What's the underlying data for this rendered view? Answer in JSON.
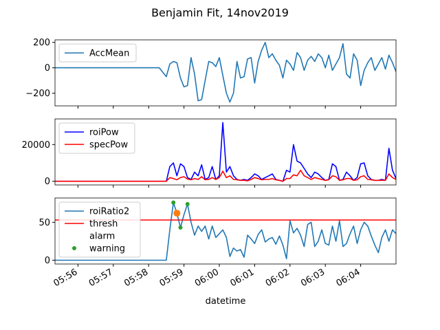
{
  "chart_data": {
    "title": "Benjamin Fit, 14nov2019",
    "xlabel": "datetime",
    "x_ticks": [
      "05:56",
      "05:57",
      "05:58",
      "05:59",
      "06:00",
      "06:01",
      "06:02",
      "06:03",
      "06:04"
    ],
    "x_tick_minutes": [
      356,
      357,
      358,
      359,
      360,
      361,
      362,
      363,
      364
    ],
    "x_range_minutes": [
      355.35,
      365.0
    ],
    "subplots": [
      {
        "type": "line",
        "ylim": [
          -300,
          220
        ],
        "y_ticks": [
          200,
          0,
          -200
        ],
        "y_tick_labels": [
          "200",
          "0",
          "−200"
        ],
        "legend": {
          "loc": "upper left",
          "entries": [
            "AccMean"
          ]
        },
        "series": [
          {
            "name": "AccMean",
            "color": "#1f77b4",
            "x": [
              355.35,
              355.5,
              355.7,
              355.9,
              356.1,
              356.3,
              356.5,
              356.7,
              356.9,
              357.1,
              357.3,
              357.5,
              357.7,
              357.9,
              358.1,
              358.3,
              358.5,
              358.6,
              358.7,
              358.8,
              358.9,
              359.0,
              359.1,
              359.2,
              359.3,
              359.4,
              359.5,
              359.6,
              359.7,
              359.8,
              359.9,
              360.0,
              360.1,
              360.2,
              360.3,
              360.4,
              360.5,
              360.6,
              360.7,
              360.8,
              360.9,
              361.0,
              361.1,
              361.2,
              361.3,
              361.4,
              361.5,
              361.6,
              361.7,
              361.8,
              361.9,
              362.0,
              362.1,
              362.2,
              362.3,
              362.4,
              362.5,
              362.6,
              362.7,
              362.8,
              362.9,
              363.0,
              363.1,
              363.2,
              363.3,
              363.4,
              363.5,
              363.6,
              363.7,
              363.8,
              363.9,
              364.0,
              364.1,
              364.2,
              364.3,
              364.4,
              364.5,
              364.6,
              364.7,
              364.8,
              364.9,
              365.0
            ],
            "y": [
              0,
              0,
              0,
              0,
              0,
              0,
              0,
              0,
              0,
              0,
              0,
              0,
              0,
              0,
              0,
              0,
              -70,
              30,
              50,
              40,
              -80,
              -150,
              -140,
              80,
              -50,
              -260,
              -250,
              -100,
              50,
              40,
              10,
              80,
              -60,
              -200,
              -270,
              -200,
              50,
              -80,
              -70,
              70,
              80,
              -120,
              50,
              140,
              200,
              80,
              110,
              60,
              20,
              -80,
              60,
              30,
              -20,
              120,
              80,
              -20,
              60,
              90,
              50,
              110,
              80,
              0,
              100,
              -20,
              30,
              80,
              190,
              -50,
              -80,
              110,
              60,
              -140,
              -20,
              40,
              80,
              -20,
              30,
              80,
              -10,
              100,
              40,
              -30
            ]
          }
        ]
      },
      {
        "type": "line",
        "ylim": [
          -2000,
          34000
        ],
        "y_ticks": [
          20000,
          0
        ],
        "y_tick_labels": [
          "20000",
          "0"
        ],
        "legend": {
          "loc": "upper left",
          "entries": [
            "roiPow",
            "specPow"
          ]
        },
        "series": [
          {
            "name": "roiPow",
            "color": "#0000ff",
            "x": [
              355.35,
              356.0,
              357.0,
              358.0,
              358.5,
              358.6,
              358.7,
              358.8,
              358.9,
              359.0,
              359.1,
              359.2,
              359.3,
              359.4,
              359.5,
              359.6,
              359.7,
              359.8,
              359.9,
              360.0,
              360.1,
              360.2,
              360.3,
              360.4,
              360.5,
              360.6,
              360.7,
              360.8,
              360.9,
              361.0,
              361.1,
              361.2,
              361.3,
              361.4,
              361.5,
              361.6,
              361.7,
              361.8,
              361.9,
              362.0,
              362.1,
              362.2,
              362.3,
              362.4,
              362.5,
              362.6,
              362.7,
              362.8,
              362.9,
              363.0,
              363.1,
              363.2,
              363.3,
              363.4,
              363.5,
              363.6,
              363.7,
              363.8,
              363.9,
              364.0,
              364.1,
              364.2,
              364.3,
              364.4,
              364.5,
              364.6,
              364.7,
              364.8,
              364.9,
              365.0
            ],
            "y": [
              0,
              0,
              0,
              0,
              0,
              8000,
              10000,
              3000,
              9500,
              8000,
              2000,
              1000,
              5000,
              3000,
              9000,
              1000,
              2000,
              8000,
              1000,
              3000,
              32000,
              5000,
              8000,
              3000,
              1000,
              500,
              1000,
              500,
              2000,
              4000,
              3000,
              1000,
              2000,
              3000,
              4000,
              1000,
              500,
              0,
              6000,
              5000,
              20000,
              11000,
              10000,
              7000,
              4000,
              2000,
              5000,
              4000,
              2000,
              500,
              1000,
              9500,
              8000,
              500,
              1000,
              5000,
              3000,
              500,
              2000,
              9500,
              10000,
              3000,
              1000,
              500,
              500,
              1000,
              500,
              18000,
              6000,
              1500
            ]
          },
          {
            "name": "specPow",
            "color": "#ff0000",
            "x": [
              355.35,
              356.0,
              357.0,
              358.0,
              358.5,
              358.6,
              358.7,
              358.8,
              358.9,
              359.0,
              359.1,
              359.2,
              359.3,
              359.4,
              359.5,
              359.6,
              359.7,
              359.8,
              359.9,
              360.0,
              360.1,
              360.2,
              360.3,
              360.4,
              360.5,
              360.6,
              360.7,
              360.8,
              360.9,
              361.0,
              361.1,
              361.2,
              361.3,
              361.4,
              361.5,
              361.6,
              361.7,
              361.8,
              361.9,
              362.0,
              362.1,
              362.2,
              362.3,
              362.4,
              362.5,
              362.6,
              362.7,
              362.8,
              362.9,
              363.0,
              363.1,
              363.2,
              363.3,
              363.4,
              363.5,
              363.6,
              363.7,
              363.8,
              363.9,
              364.0,
              364.1,
              364.2,
              364.3,
              364.4,
              364.5,
              364.6,
              364.7,
              364.8,
              364.9,
              365.0
            ],
            "y": [
              0,
              0,
              0,
              0,
              0,
              2000,
              1500,
              800,
              2000,
              2500,
              1200,
              800,
              1500,
              1000,
              2500,
              800,
              1000,
              2000,
              1000,
              2000,
              5500,
              2000,
              3000,
              1000,
              800,
              500,
              500,
              300,
              1000,
              2000,
              1500,
              800,
              1000,
              1000,
              1500,
              800,
              500,
              0,
              1500,
              1500,
              3500,
              3000,
              6000,
              3000,
              2000,
              1000,
              2000,
              1500,
              1000,
              500,
              800,
              3000,
              2500,
              500,
              800,
              1500,
              1500,
              500,
              800,
              2500,
              3000,
              1000,
              800,
              500,
              500,
              500,
              500,
              4000,
              2000,
              1000
            ]
          }
        ]
      },
      {
        "type": "line",
        "ylim": [
          -5,
          82
        ],
        "y_ticks": [
          50,
          0
        ],
        "y_tick_labels": [
          "50",
          "0"
        ],
        "legend": {
          "loc": "upper left",
          "entries": [
            "roiRatio2",
            "thresh",
            "alarm",
            "warning"
          ]
        },
        "series": [
          {
            "name": "roiRatio2",
            "color": "#1f77b4",
            "x": [
              355.35,
              356.0,
              357.0,
              358.0,
              358.5,
              358.6,
              358.7,
              358.8,
              358.9,
              359.0,
              359.1,
              359.2,
              359.3,
              359.4,
              359.5,
              359.6,
              359.7,
              359.8,
              359.9,
              360.0,
              360.1,
              360.2,
              360.3,
              360.4,
              360.5,
              360.6,
              360.7,
              360.8,
              360.9,
              361.0,
              361.1,
              361.2,
              361.3,
              361.4,
              361.5,
              361.6,
              361.7,
              361.8,
              361.9,
              362.0,
              362.1,
              362.2,
              362.3,
              362.4,
              362.5,
              362.6,
              362.7,
              362.8,
              362.9,
              363.0,
              363.1,
              363.2,
              363.3,
              363.4,
              363.5,
              363.6,
              363.7,
              363.8,
              363.9,
              364.0,
              364.1,
              364.2,
              364.3,
              364.4,
              364.5,
              364.6,
              364.7,
              364.8,
              364.9,
              365.0
            ],
            "y": [
              0,
              0,
              0,
              0,
              0,
              40,
              76,
              62,
              43,
              60,
              74,
              50,
              33,
              45,
              38,
              45,
              28,
              45,
              30,
              35,
              40,
              30,
              5,
              16,
              12,
              14,
              4,
              33,
              28,
              22,
              34,
              40,
              24,
              28,
              30,
              21,
              32,
              20,
              2,
              52,
              36,
              42,
              33,
              18,
              47,
              50,
              18,
              25,
              40,
              22,
              20,
              45,
              25,
              52,
              18,
              22,
              35,
              45,
              22,
              40,
              50,
              45,
              32,
              20,
              10,
              30,
              40,
              25,
              40,
              35
            ]
          },
          {
            "name": "thresh",
            "color": "#ff0000",
            "x": [
              355.35,
              365.0
            ],
            "y": [
              53,
              53
            ]
          },
          {
            "name": "alarm",
            "color": "#ff7f0e",
            "marker": "o",
            "x": [
              358.8
            ],
            "y": [
              62
            ]
          },
          {
            "name": "warning",
            "color": "#2ca02c",
            "marker": ".",
            "x": [
              358.7,
              358.9,
              359.1
            ],
            "y": [
              76,
              43,
              74
            ]
          }
        ]
      }
    ]
  }
}
